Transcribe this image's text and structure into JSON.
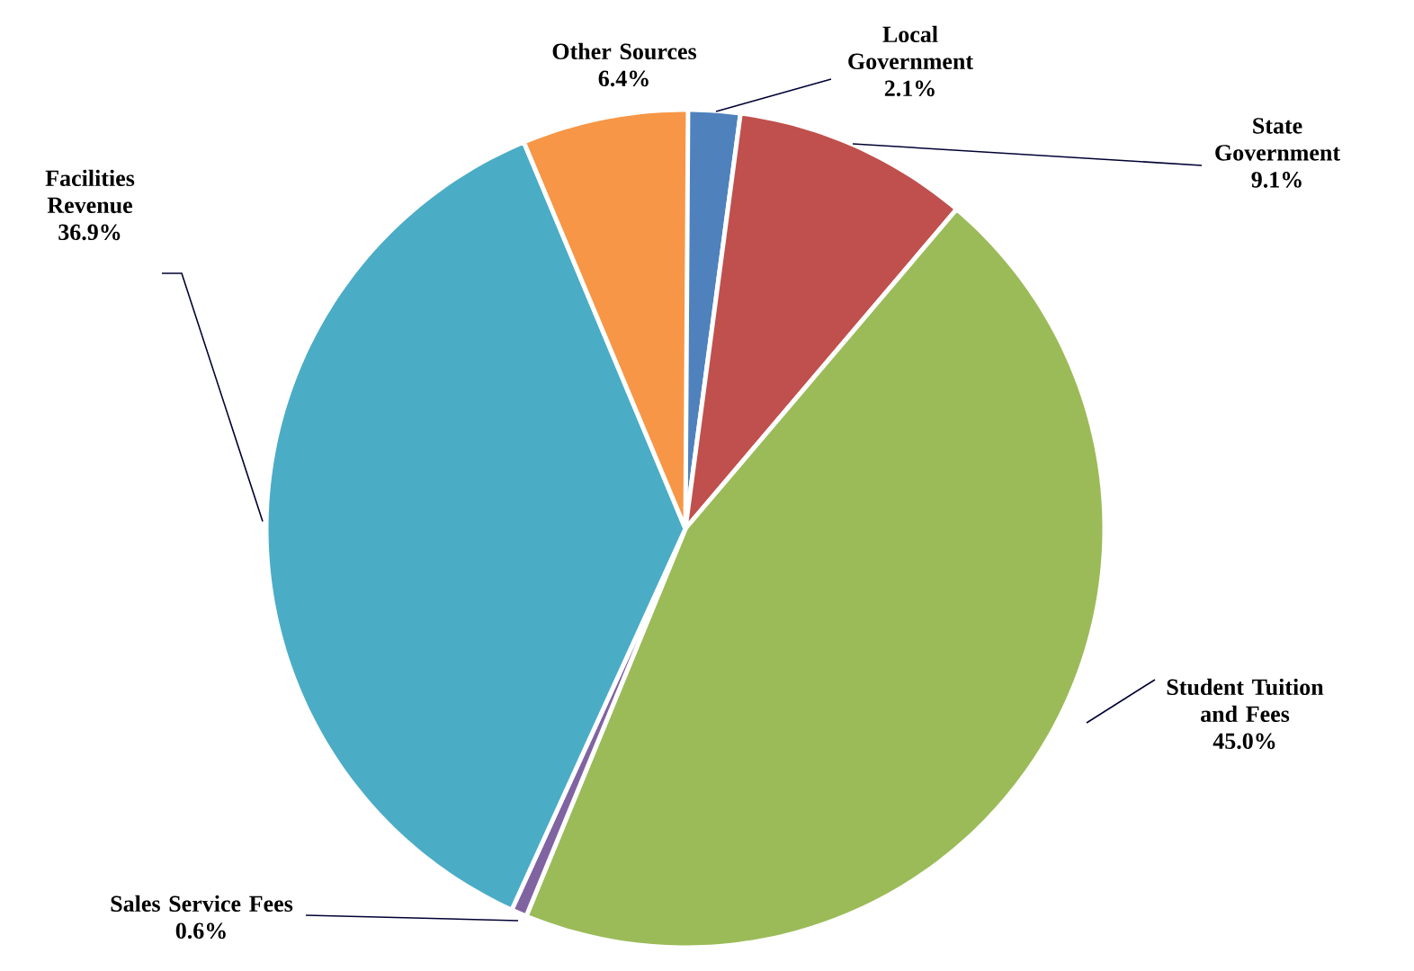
{
  "chart_data": {
    "type": "pie",
    "categories": [
      "Local Government",
      "State Government",
      "Student Tuition and Fees",
      "Sales Service Fees",
      "Facilities Revenue",
      "Other Sources"
    ],
    "values": [
      2.1,
      9.1,
      45.0,
      0.6,
      36.9,
      6.4
    ],
    "value_labels": [
      "2.1%",
      "9.1%",
      "45.0%",
      "0.6%",
      "36.9%",
      "6.4%"
    ],
    "colors": [
      "#4f81bd",
      "#c0504d",
      "#9bbb59",
      "#8064a2",
      "#4bacc6",
      "#f79646"
    ]
  }
}
